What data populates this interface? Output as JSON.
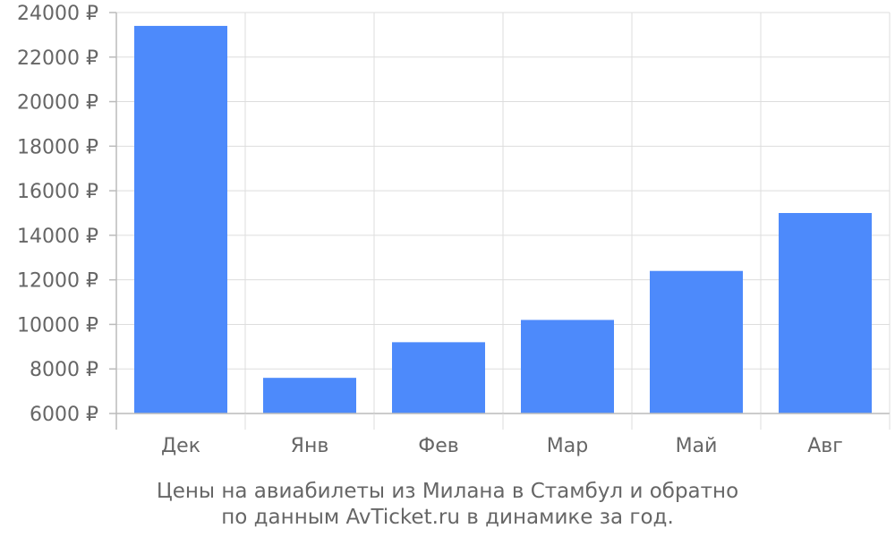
{
  "chart_data": {
    "type": "bar",
    "categories": [
      "Дек",
      "Янв",
      "Фев",
      "Мар",
      "Май",
      "Авг"
    ],
    "values": [
      23400,
      7600,
      9200,
      10200,
      12400,
      15000
    ],
    "currency_suffix": " ₽",
    "ylim": [
      6000,
      24000
    ],
    "ytick_step": 2000,
    "grid": true,
    "bar_color": "#4d8afb",
    "caption_lines": [
      "Цены на авиабилеты из Милана в Стамбул и обратно",
      "по данным AvTicket.ru в динамике за год."
    ]
  }
}
